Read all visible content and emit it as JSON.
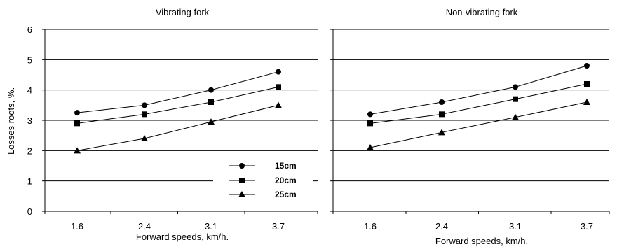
{
  "ylabel": "Losses roots, %.",
  "chart_data": [
    {
      "type": "line",
      "title": "Vibrating fork",
      "xlabel": "Forward speeds, km/h.",
      "categories": [
        "1.6",
        "2.4",
        "3.1",
        "3.7"
      ],
      "ylim": [
        0,
        6
      ],
      "yticks": [
        "0",
        "1",
        "2",
        "3",
        "4",
        "5",
        "6"
      ],
      "grid": true,
      "legend": "bottom-right",
      "series": [
        {
          "name": "15cm",
          "marker": "circle",
          "values": [
            3.25,
            3.5,
            4.0,
            4.6
          ]
        },
        {
          "name": "20cm",
          "marker": "square",
          "values": [
            2.9,
            3.2,
            3.6,
            4.1
          ]
        },
        {
          "name": "25cm",
          "marker": "triangle",
          "values": [
            2.0,
            2.4,
            2.95,
            3.5
          ]
        }
      ]
    },
    {
      "type": "line",
      "title": "Non-vibrating fork",
      "xlabel": "Forward speeds, km/h.",
      "categories": [
        "1.6",
        "2.4",
        "3.1",
        "3.7"
      ],
      "ylim": [
        0,
        6
      ],
      "grid": true,
      "series": [
        {
          "name": "15cm",
          "marker": "circle",
          "values": [
            3.2,
            3.6,
            4.1,
            4.8
          ]
        },
        {
          "name": "20cm",
          "marker": "square",
          "values": [
            2.9,
            3.2,
            3.7,
            4.2
          ]
        },
        {
          "name": "25cm",
          "marker": "triangle",
          "values": [
            2.1,
            2.6,
            3.1,
            3.6
          ]
        }
      ]
    }
  ]
}
